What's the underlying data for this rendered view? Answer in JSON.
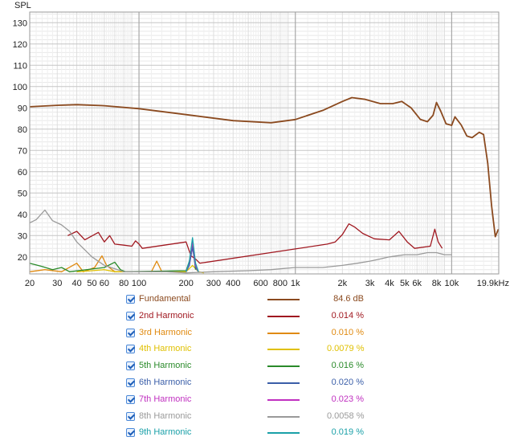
{
  "chart_data": {
    "type": "line",
    "xscale": "log",
    "xlim": [
      20,
      20000
    ],
    "ylim": [
      12,
      135
    ],
    "ylabel": "SPL",
    "y_ticks": [
      20,
      30,
      40,
      50,
      60,
      70,
      80,
      90,
      100,
      110,
      120,
      130
    ],
    "x_tick_labels": [
      "20",
      "30",
      "40",
      "50",
      "60",
      "80",
      "100",
      "200",
      "300",
      "400",
      "600",
      "800",
      "1k",
      "2k",
      "3k",
      "4k",
      "5k",
      "6k",
      "8k",
      "10k",
      "19.9kHz"
    ],
    "grid": true,
    "series": [
      {
        "name": "Fundamental",
        "value": "84.6 dB",
        "color": "#8b4a1f",
        "x": [
          20,
          30,
          40,
          60,
          100,
          200,
          400,
          700,
          1000,
          1500,
          2000,
          2300,
          2800,
          3500,
          4200,
          4800,
          5500,
          6300,
          7000,
          7600,
          8000,
          8500,
          9200,
          10000,
          10500,
          11500,
          12500,
          13500,
          15000,
          16000,
          17000,
          18000,
          19000,
          19900
        ],
        "y": [
          90.5,
          91.2,
          91.5,
          91,
          89.6,
          86.8,
          84,
          83,
          84.5,
          88.8,
          93,
          94.8,
          94,
          92,
          92,
          93,
          90,
          84.6,
          83.5,
          86.5,
          92.5,
          88.5,
          82.5,
          81.8,
          85.8,
          82,
          76.8,
          76,
          78.5,
          77.5,
          64,
          44,
          29.5,
          33
        ]
      },
      {
        "name": "2nd Harmonic",
        "value": "0.014 %",
        "color": "#a01820",
        "x": [
          35,
          40,
          45,
          55,
          60,
          65,
          70,
          80,
          90,
          95,
          100,
          105,
          200,
          215,
          230,
          245,
          1600,
          1800,
          2000,
          2200,
          2400,
          2700,
          3200,
          4000,
          4600,
          5200,
          5800,
          7300,
          7800,
          8200,
          8700
        ],
        "y": [
          30,
          32,
          28,
          31.5,
          27,
          30,
          26,
          25.5,
          25,
          27.5,
          26,
          24,
          27,
          20.5,
          19,
          17,
          26,
          27,
          30.5,
          35.5,
          34,
          31,
          28.5,
          28,
          32,
          27,
          24,
          25,
          33,
          27,
          24
        ]
      },
      {
        "name": "3rd Harmonic",
        "value": "0.010 %",
        "color": "#e08a10",
        "x": [
          20,
          25,
          32,
          40,
          44,
          52,
          58,
          62,
          70,
          120,
          130,
          140
        ],
        "y": [
          13,
          14,
          13,
          17,
          13,
          15,
          20.5,
          16,
          13,
          13,
          18,
          13
        ]
      },
      {
        "name": "4th Harmonic",
        "value": "0.0079 %",
        "color": "#e0c000",
        "x": [
          40,
          50,
          60,
          70,
          200,
          220,
          240,
          260
        ],
        "y": [
          13,
          13.5,
          14,
          13,
          13,
          16,
          13,
          12.5
        ]
      },
      {
        "name": "5th Harmonic",
        "value": "0.016 %",
        "color": "#2a8a2a",
        "x": [
          20,
          24,
          28,
          32,
          36,
          60,
          70,
          76,
          82,
          200,
          210,
          220,
          230
        ],
        "y": [
          17,
          15.5,
          14,
          15,
          13,
          15,
          17.5,
          14,
          13,
          13.5,
          18,
          26,
          14
        ]
      },
      {
        "name": "6th Harmonic",
        "value": "0.020 %",
        "color": "#3a5ea8",
        "x": [
          200,
          210,
          220,
          230,
          240
        ],
        "y": [
          13,
          16,
          24.5,
          15,
          13
        ]
      },
      {
        "name": "7th Harmonic",
        "value": "0.023 %",
        "color": "#c030c0",
        "x": [
          200,
          210,
          220,
          230,
          240
        ],
        "y": [
          13,
          17.5,
          27,
          16,
          13
        ]
      },
      {
        "name": "8th Harmonic",
        "value": "0.0058 %",
        "color": "#9a9a9a",
        "x": [
          20,
          22,
          25,
          28,
          32,
          36,
          40,
          50,
          60,
          80,
          100,
          150,
          200,
          300,
          500,
          700,
          1000,
          1500,
          2000,
          2500,
          3000,
          3500,
          4000,
          5000,
          6000,
          7000,
          8000,
          9000,
          10000
        ],
        "y": [
          36,
          37.5,
          42,
          37,
          35,
          32,
          27,
          20,
          16,
          13,
          13,
          13,
          12.5,
          13,
          13.5,
          14,
          15,
          15,
          16,
          17,
          18,
          19,
          20,
          21,
          21,
          22,
          22,
          21,
          21
        ]
      },
      {
        "name": "9th Harmonic",
        "value": "0.019 %",
        "color": "#1aa0a8",
        "x": [
          200,
          210,
          220,
          230,
          240
        ],
        "y": [
          13,
          18,
          29,
          17,
          13
        ]
      }
    ]
  }
}
